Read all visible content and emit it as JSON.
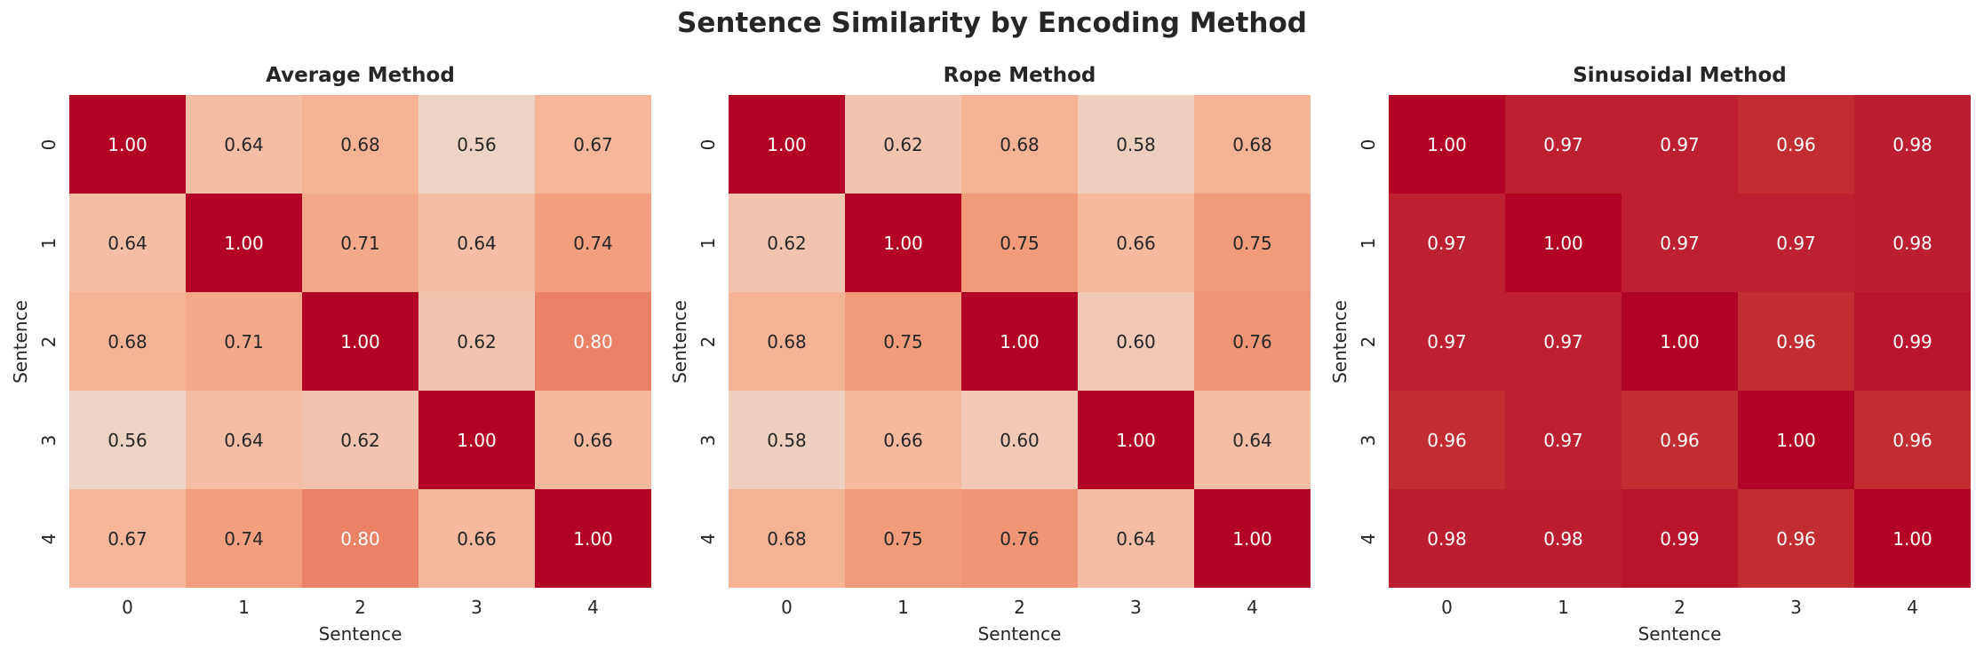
{
  "chart_data": {
    "title": "Sentence Similarity by Encoding Method",
    "type": "heatmap",
    "colormap": "coolwarm",
    "colorbar": false,
    "annotated": true,
    "panels": [
      {
        "title": "Average Method",
        "xlabel": "Sentence",
        "ylabel": "Sentence",
        "xticks": [
          "0",
          "1",
          "2",
          "3",
          "4"
        ],
        "yticks": [
          "0",
          "1",
          "2",
          "3",
          "4"
        ],
        "values": [
          [
            1.0,
            0.64,
            0.68,
            0.56,
            0.67
          ],
          [
            0.64,
            1.0,
            0.71,
            0.64,
            0.74
          ],
          [
            0.68,
            0.71,
            1.0,
            0.62,
            0.8
          ],
          [
            0.56,
            0.64,
            0.62,
            1.0,
            0.66
          ],
          [
            0.67,
            0.74,
            0.8,
            0.66,
            1.0
          ]
        ]
      },
      {
        "title": "Rope Method",
        "xlabel": "Sentence",
        "ylabel": "Sentence",
        "xticks": [
          "0",
          "1",
          "2",
          "3",
          "4"
        ],
        "yticks": [
          "0",
          "1",
          "2",
          "3",
          "4"
        ],
        "values": [
          [
            1.0,
            0.62,
            0.68,
            0.58,
            0.68
          ],
          [
            0.62,
            1.0,
            0.75,
            0.66,
            0.75
          ],
          [
            0.68,
            0.75,
            1.0,
            0.6,
            0.76
          ],
          [
            0.58,
            0.66,
            0.6,
            1.0,
            0.64
          ],
          [
            0.68,
            0.75,
            0.76,
            0.64,
            1.0
          ]
        ]
      },
      {
        "title": "Sinusoidal Method",
        "xlabel": "Sentence",
        "ylabel": "Sentence",
        "xticks": [
          "0",
          "1",
          "2",
          "3",
          "4"
        ],
        "yticks": [
          "0",
          "1",
          "2",
          "3",
          "4"
        ],
        "values": [
          [
            1.0,
            0.97,
            0.97,
            0.96,
            0.98
          ],
          [
            0.97,
            1.0,
            0.97,
            0.97,
            0.98
          ],
          [
            0.97,
            0.97,
            1.0,
            0.96,
            0.99
          ],
          [
            0.96,
            0.97,
            0.96,
            1.0,
            0.96
          ],
          [
            0.98,
            0.98,
            0.99,
            0.96,
            1.0
          ]
        ]
      }
    ]
  }
}
